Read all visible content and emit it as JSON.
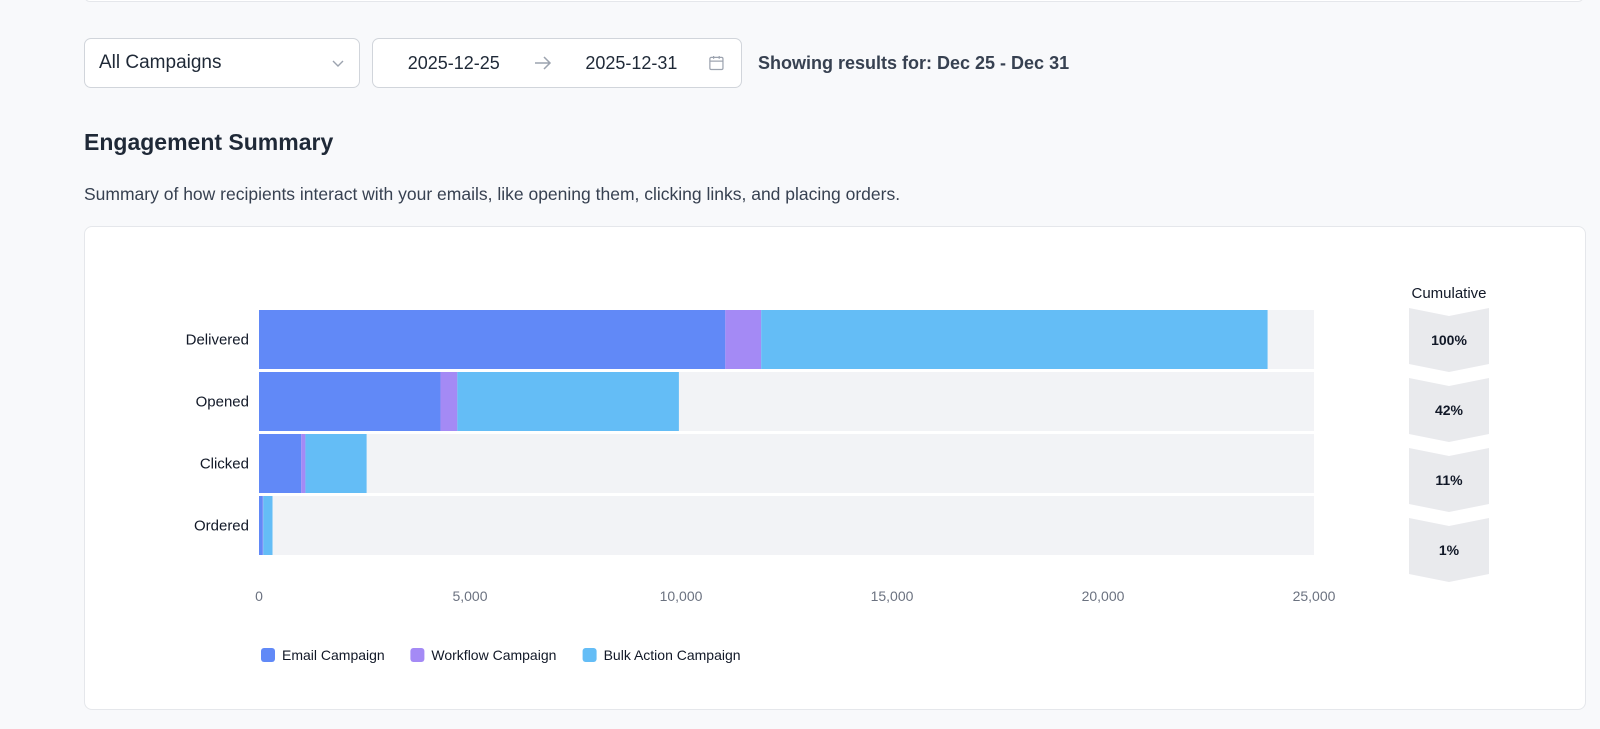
{
  "filters": {
    "campaign_select": {
      "value": "All Campaigns",
      "icon": "chevron-down-icon"
    },
    "date_range": {
      "start": "2025-12-25",
      "end": "2025-12-31",
      "separator_icon": "arrow-right-icon",
      "calendar_icon": "calendar-icon"
    },
    "showing_text": "Showing results for: Dec 25 - Dec 31"
  },
  "section": {
    "title": "Engagement Summary",
    "description": "Summary of how recipients interact with your emails, like opening them, clicking links, and placing orders."
  },
  "chart_data": {
    "type": "bar",
    "orientation": "horizontal",
    "stacked": true,
    "categories": [
      "Delivered",
      "Opened",
      "Clicked",
      "Ordered"
    ],
    "series": [
      {
        "name": "Email Campaign",
        "color": "#6189f7",
        "values": [
          11050,
          4300,
          1000,
          90
        ]
      },
      {
        "name": "Workflow Campaign",
        "color": "#a48af5",
        "values": [
          850,
          400,
          100,
          10
        ]
      },
      {
        "name": "Bulk Action Campaign",
        "color": "#64bdf6",
        "values": [
          12000,
          5250,
          1450,
          220
        ]
      }
    ],
    "xlim": [
      0,
      25000
    ],
    "xticks": [
      0,
      5000,
      10000,
      15000,
      20000,
      25000
    ],
    "xtick_labels": [
      "0",
      "5,000",
      "10,000",
      "15,000",
      "20,000",
      "25,000"
    ],
    "track_color": "#f2f3f6",
    "legend_position": "bottom-left",
    "cumulative": {
      "title": "Cumulative",
      "values": [
        "100%",
        "42%",
        "11%",
        "1%"
      ]
    }
  }
}
